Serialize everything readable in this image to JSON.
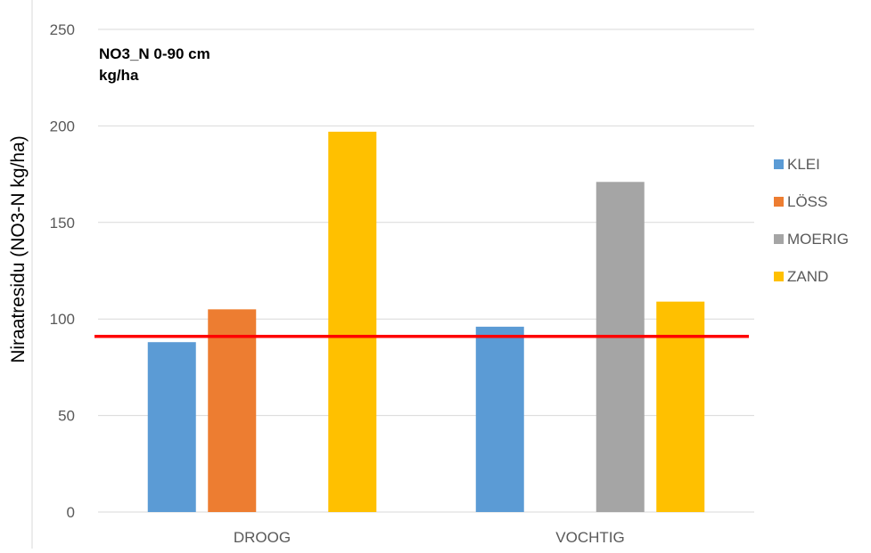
{
  "chart_data": {
    "type": "bar",
    "annotation_lines": [
      "NO3_N 0-90 cm",
      "kg/ha"
    ],
    "ylabel": "Niraatresidu  (NO3-N kg/ha)",
    "xlabel": "",
    "ylim": [
      0,
      250
    ],
    "yticks": [
      0,
      50,
      100,
      150,
      200,
      250
    ],
    "grid": true,
    "legend_position": "right",
    "categories": [
      "DROOG",
      "VOCHTIG"
    ],
    "series": [
      {
        "name": "KLEI",
        "color": "#5B9BD5",
        "values": [
          88,
          96
        ]
      },
      {
        "name": "LÖSS",
        "color": "#ED7D31",
        "values": [
          105,
          null
        ]
      },
      {
        "name": "MOERIG",
        "color": "#A5A5A5",
        "values": [
          null,
          171
        ]
      },
      {
        "name": "ZAND",
        "color": "#FFC000",
        "values": [
          197,
          109
        ]
      }
    ],
    "reference_line": {
      "value": 91,
      "color": "#FF0000"
    }
  }
}
